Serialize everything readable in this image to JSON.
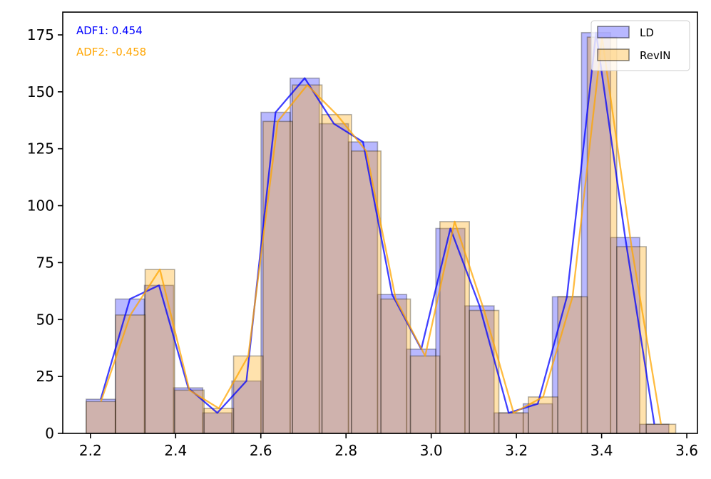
{
  "chart_data": {
    "type": "bar",
    "subtype": "overlapping-histogram-with-frequency-polygon",
    "title": "",
    "xlabel": "",
    "ylabel": "",
    "xlim": [
      2.135,
      3.625
    ],
    "ylim": [
      0,
      185
    ],
    "x_ticks": [
      2.2,
      2.4,
      2.6,
      2.8,
      3.0,
      3.2,
      3.4,
      3.6
    ],
    "x_tick_labels": [
      "2.2",
      "2.4",
      "2.6",
      "2.8",
      "3.0",
      "3.2",
      "3.4",
      "3.6"
    ],
    "y_ticks": [
      0,
      25,
      50,
      75,
      100,
      125,
      150,
      175
    ],
    "y_tick_labels": [
      "0",
      "25",
      "50",
      "75",
      "100",
      "125",
      "150",
      "175"
    ],
    "grid": false,
    "legend_position": "top-right",
    "series": [
      {
        "name": "LD",
        "color": "#0000ff",
        "bin_edges": [
          2.19,
          2.2584,
          2.3268,
          2.3952,
          2.4636,
          2.532,
          2.6004,
          2.6688,
          2.7372,
          2.8056,
          2.874,
          2.9424,
          3.0108,
          3.0792,
          3.1476,
          3.216,
          3.2844,
          3.3528,
          3.4212,
          3.4896,
          3.558
        ],
        "counts": [
          15,
          59,
          65,
          20,
          9,
          23,
          141,
          156,
          136,
          128,
          61,
          37,
          90,
          56,
          9,
          13,
          60,
          176,
          86,
          4
        ]
      },
      {
        "name": "RevIN",
        "color": "#ffa500",
        "bin_edges": [
          2.19,
          2.2592,
          2.3284,
          2.3976,
          2.4668,
          2.536,
          2.6052,
          2.6744,
          2.7436,
          2.8128,
          2.882,
          2.9512,
          3.0204,
          3.0896,
          3.1588,
          3.228,
          3.2972,
          3.3664,
          3.4356,
          3.5048,
          3.574
        ],
        "counts": [
          14,
          52,
          72,
          19,
          11,
          34,
          137,
          153,
          140,
          124,
          59,
          34,
          93,
          54,
          9,
          16,
          60,
          174,
          82,
          4
        ]
      }
    ],
    "annotations": [
      {
        "text": "ADF1: 0.454",
        "color": "#0000ff"
      },
      {
        "text": "ADF2: -0.458",
        "color": "#ffa500"
      }
    ]
  }
}
